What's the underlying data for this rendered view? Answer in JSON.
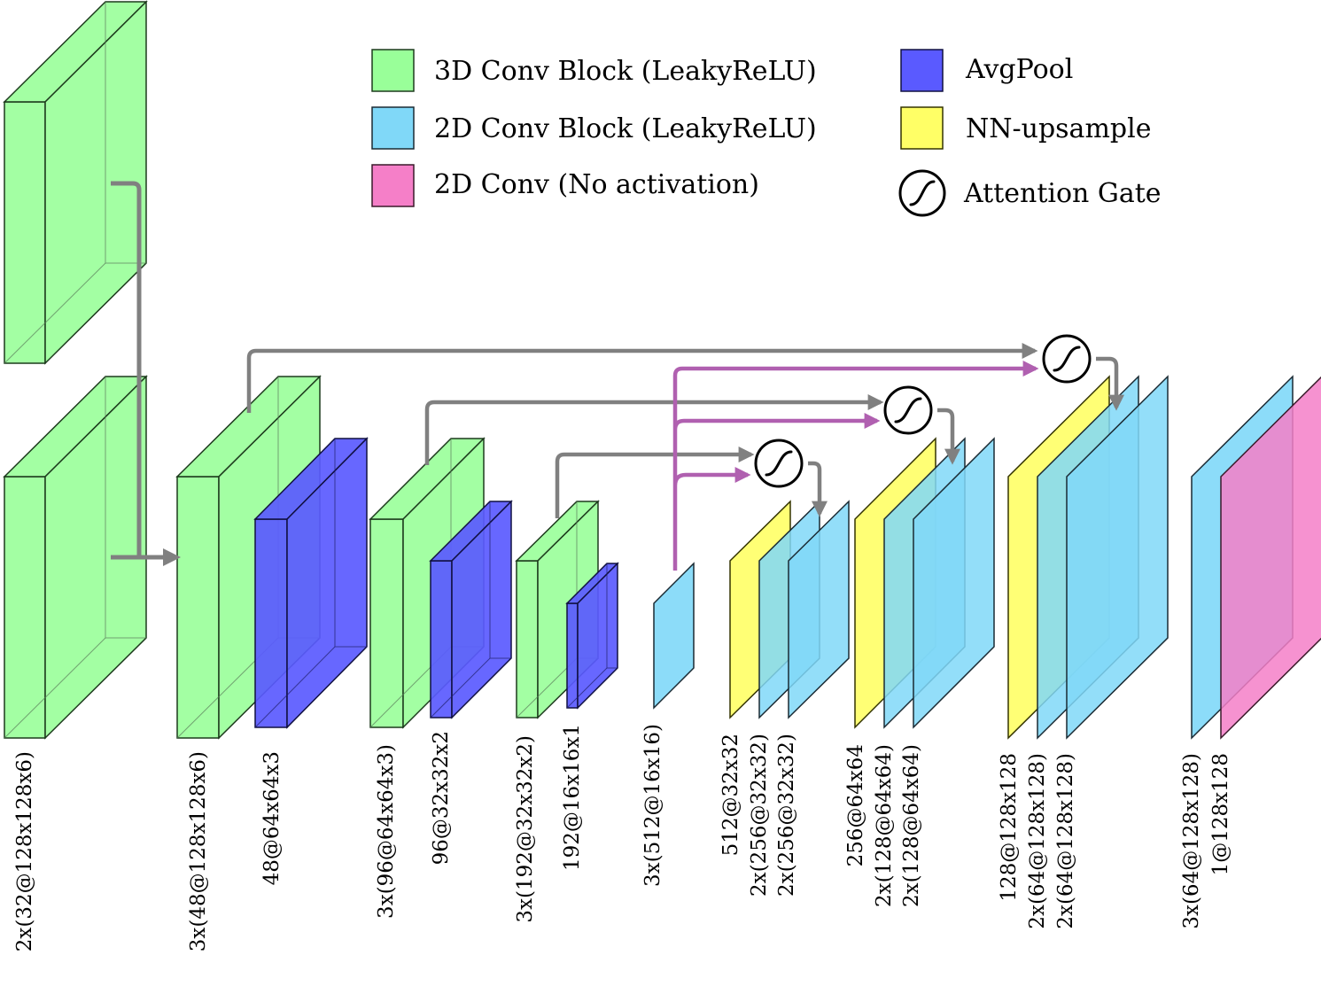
{
  "legend": {
    "conv3d": "3D Conv Block (LeakyReLU)",
    "conv2d": "2D Conv Block (LeakyReLU)",
    "conv2d_noact": "2D Conv (No activation)",
    "avgpool": "AvgPool",
    "upsample": "NN-upsample",
    "attention": "Attention Gate"
  },
  "colors": {
    "conv3d": "#99ff99",
    "conv2d": "#80d8f8",
    "conv2d_noact": "#f57fc8",
    "avgpool": "#5a5aff",
    "upsample": "#ffff66",
    "skip_arrow": "#808080",
    "gate_arrow": "#b060b0"
  },
  "labels": {
    "input": "2x(32@128x128x6)",
    "enc1_conv": "3x(48@128x128x6)",
    "enc1_pool": "48@64x64x3",
    "enc2_conv": "3x(96@64x64x3)",
    "enc2_pool": "96@32x32x2",
    "enc3_conv": "3x(192@32x32x2)",
    "enc3_pool": "192@16x16x1",
    "bottleneck": "3x(512@16x16)",
    "dec1_up": "512@32x32",
    "dec1_conv_a": "2x(256@32x32)",
    "dec1_conv_b": "2x(256@32x32)",
    "dec2_up": "256@64x64",
    "dec2_conv_a": "2x(128@64x64)",
    "dec2_conv_b": "2x(128@64x64)",
    "dec3_up": "128@128x128",
    "dec3_conv_a": "2x(64@128x128)",
    "dec3_conv_b": "2x(64@128x128)",
    "out_conv": "3x(64@128x128)",
    "out_final": "1@128x128"
  }
}
